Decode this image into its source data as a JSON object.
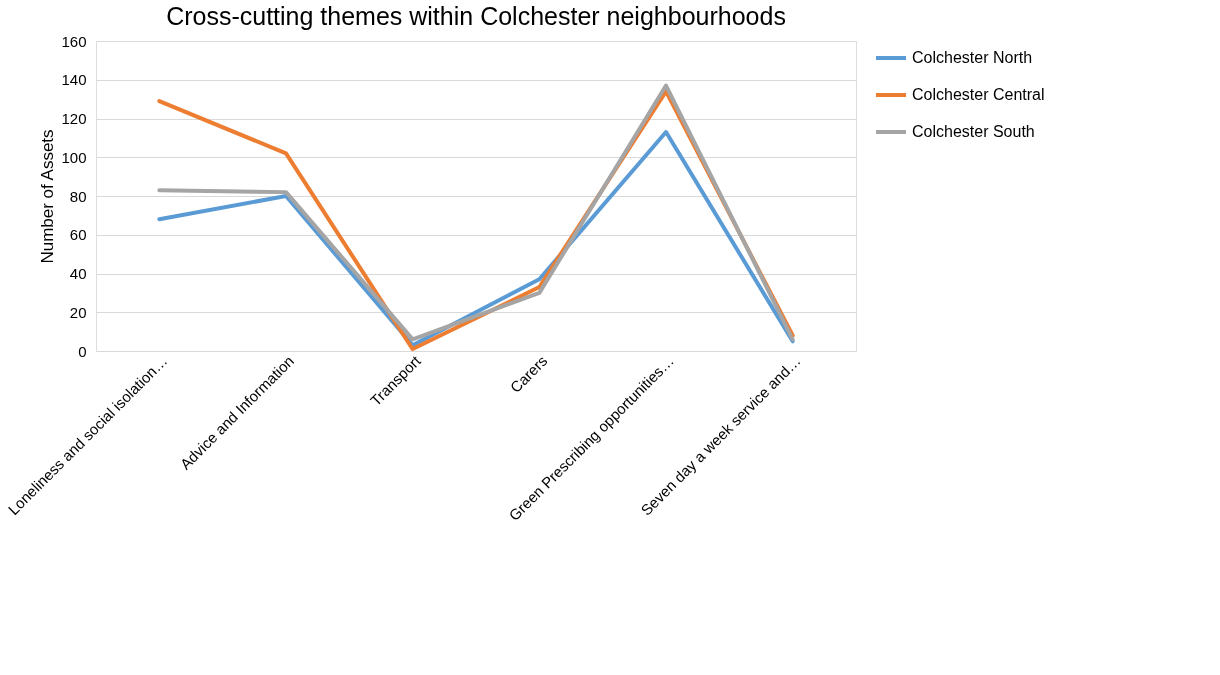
{
  "chart_data": {
    "type": "line",
    "title": "Cross-cutting themes within Colchester neighbourhoods",
    "ylabel": "Number of Assets",
    "categories": [
      "Loneliness and social isolation…",
      "Advice and Information",
      "Transport",
      "Carers",
      "Green Prescribing opportunities…",
      "Seven day a week service and…"
    ],
    "series": [
      {
        "name": "Colchester North",
        "color": "#5b9bd5",
        "values": [
          68,
          80,
          3,
          37,
          113,
          5
        ]
      },
      {
        "name": "Colchester Central",
        "color": "#ed7d31",
        "values": [
          129,
          102,
          1,
          33,
          134,
          8
        ]
      },
      {
        "name": "Colchester South",
        "color": "#a5a5a5",
        "values": [
          83,
          82,
          6,
          30,
          137,
          6
        ]
      }
    ],
    "ylim": [
      0,
      160
    ],
    "yticks": [
      0,
      20,
      40,
      60,
      80,
      100,
      120,
      140,
      160
    ],
    "grid": "y",
    "legend": "right",
    "line_style": "solid"
  }
}
